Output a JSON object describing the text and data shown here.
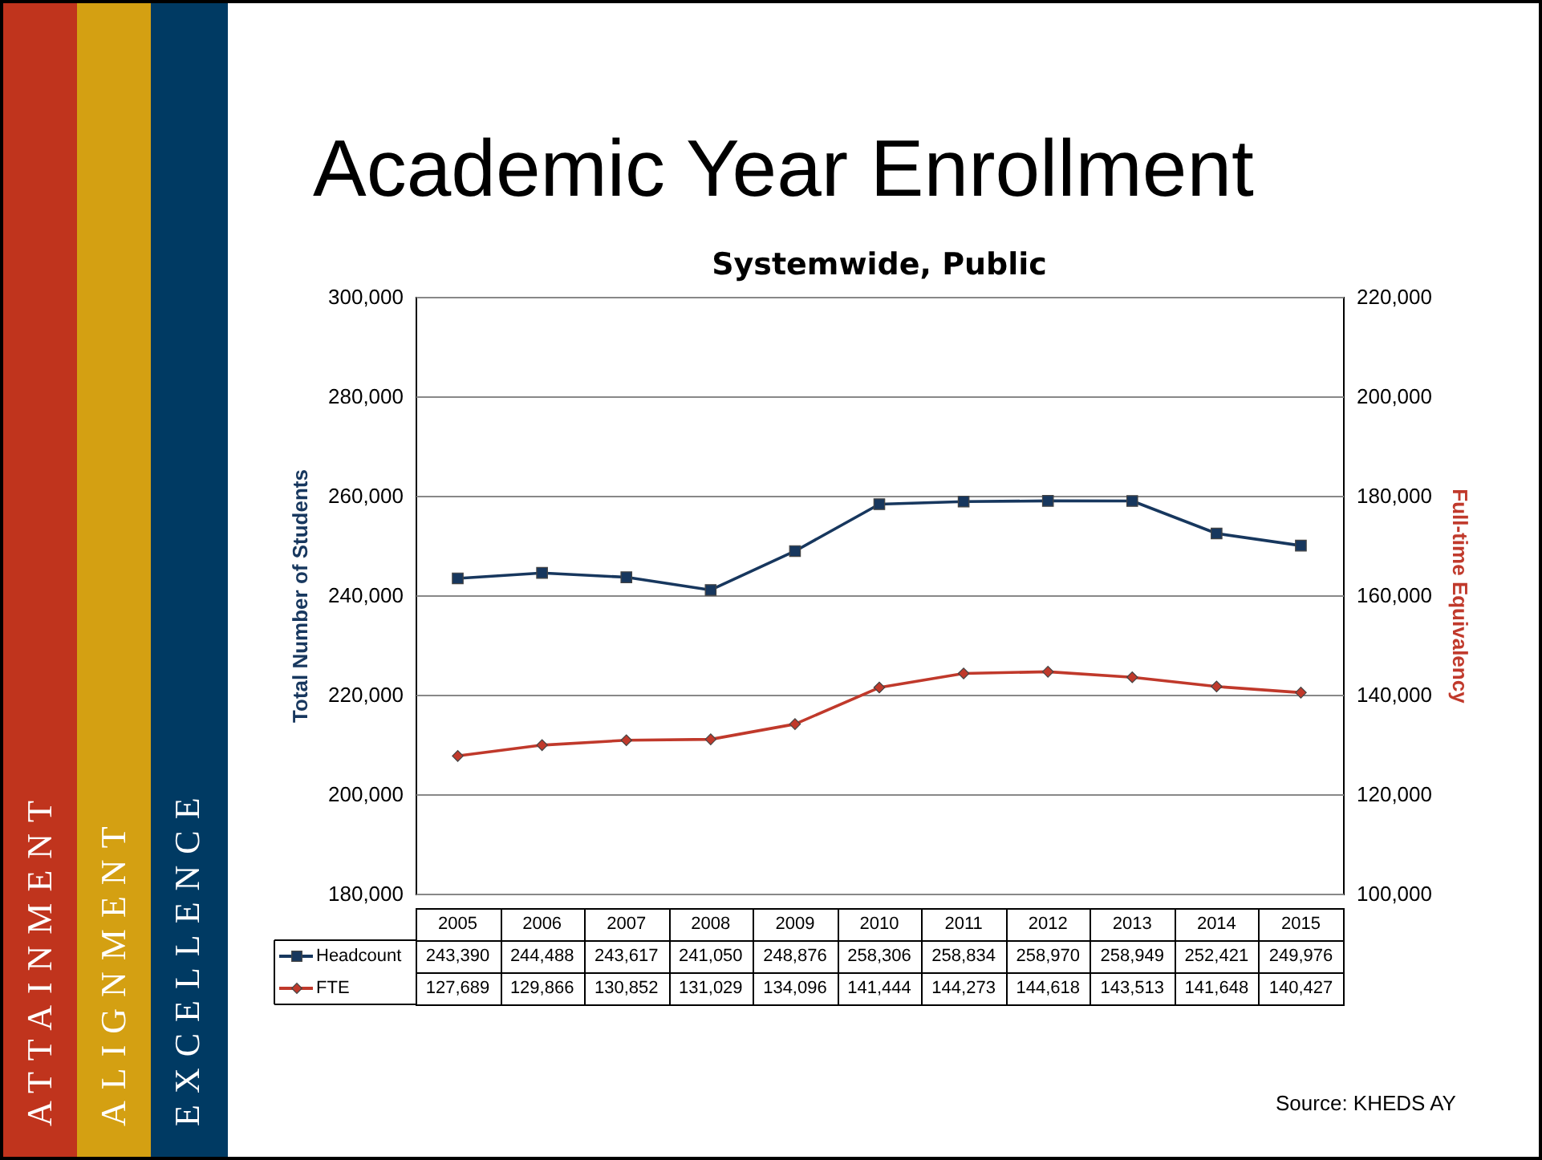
{
  "chart_data": {
    "type": "line",
    "title": "Academic Year Enrollment",
    "subtitle": "Systemwide, Public",
    "ylabel": "Total  Number of Students",
    "y2label": "Full-time Equivalency",
    "categories": [
      "2005",
      "2006",
      "2007",
      "2008",
      "2009",
      "2010",
      "2011",
      "2012",
      "2013",
      "2014",
      "2015"
    ],
    "series": [
      {
        "name": "Headcount",
        "color": "#17375e",
        "axis": "y",
        "marker": "square",
        "values": [
          243390,
          244488,
          243617,
          241050,
          248876,
          258306,
          258834,
          258970,
          258949,
          252421,
          249976
        ],
        "value_labels": [
          "243,390",
          "244,488",
          "243,617",
          "241,050",
          "248,876",
          "258,306",
          "258,834",
          "258,970",
          "258,949",
          "252,421",
          "249,976"
        ]
      },
      {
        "name": "FTE",
        "color": "#c0392b",
        "axis": "y2",
        "marker": "diamond",
        "values": [
          127689,
          129866,
          130852,
          131029,
          134096,
          141444,
          144273,
          144618,
          143513,
          141648,
          140427
        ],
        "value_labels": [
          "127,689",
          "129,866",
          "130,852",
          "131,029",
          "134,096",
          "141,444",
          "144,273",
          "144,618",
          "143,513",
          "141,648",
          "140,427"
        ]
      }
    ],
    "ylim": [
      180000,
      300000
    ],
    "yticks": [
      {
        "value": 180000,
        "label": "180,000"
      },
      {
        "value": 200000,
        "label": "200,000"
      },
      {
        "value": 220000,
        "label": "220,000"
      },
      {
        "value": 240000,
        "label": "240,000"
      },
      {
        "value": 260000,
        "label": "260,000"
      },
      {
        "value": 280000,
        "label": "280,000"
      },
      {
        "value": 300000,
        "label": "300,000"
      }
    ],
    "y2lim": [
      100000,
      220000
    ],
    "y2ticks": [
      {
        "value": 100000,
        "label": "100,000"
      },
      {
        "value": 120000,
        "label": "120,000"
      },
      {
        "value": 140000,
        "label": "140,000"
      },
      {
        "value": 160000,
        "label": "160,000"
      },
      {
        "value": 180000,
        "label": "180,000"
      },
      {
        "value": 200000,
        "label": "200,000"
      },
      {
        "value": 220000,
        "label": "220,000"
      }
    ],
    "grid": "y",
    "legend": "bottom",
    "annotations": [
      "ATTAINMENT",
      "ALIGNMENT",
      "EXCELLENCE",
      "Source: KHEDS AY"
    ]
  }
}
